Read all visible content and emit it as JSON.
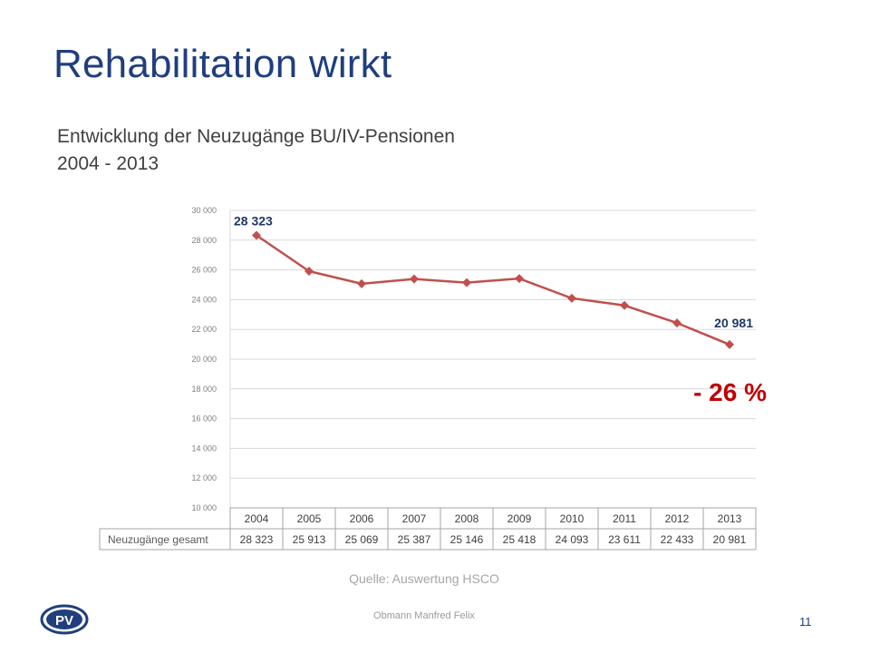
{
  "slide": {
    "title": "Rehabilitation wirkt",
    "subtitle_line1": "Entwicklung der Neuzugänge BU/IV-Pensionen",
    "subtitle_line2": "2004 - 2013",
    "source": "Quelle: Auswertung HSCO",
    "footer": "Obmann Manfred Felix",
    "page_number": "11",
    "logo_text": "PV"
  },
  "colors": {
    "title": "#1f3f7d",
    "line": "#c0504d",
    "label": "#1f3864",
    "change": "#c00000",
    "grid": "#d9d9d9",
    "axis_text": "#7f7f7f"
  },
  "chart_data": {
    "type": "line",
    "categories": [
      "2004",
      "2005",
      "2006",
      "2007",
      "2008",
      "2009",
      "2010",
      "2011",
      "2012",
      "2013"
    ],
    "series": [
      {
        "name": "Neuzugänge gesamt",
        "values": [
          28323,
          25913,
          25069,
          25387,
          25146,
          25418,
          24093,
          23611,
          22433,
          20981
        ]
      }
    ],
    "table_values": [
      "28 323",
      "25 913",
      "25 069",
      "25 387",
      "25 146",
      "25 418",
      "24 093",
      "23 611",
      "22 433",
      "20 981"
    ],
    "y_ticks": [
      "10 000",
      "12 000",
      "14 000",
      "16 000",
      "18 000",
      "20 000",
      "22 000",
      "24 000",
      "26 000",
      "28 000",
      "30 000"
    ],
    "ylim": [
      10000,
      30000
    ],
    "grid": true,
    "data_labels": [
      {
        "index": 0,
        "text": "28 323"
      },
      {
        "index": 9,
        "text": "20 981"
      }
    ],
    "annotation": "- 26 %"
  }
}
